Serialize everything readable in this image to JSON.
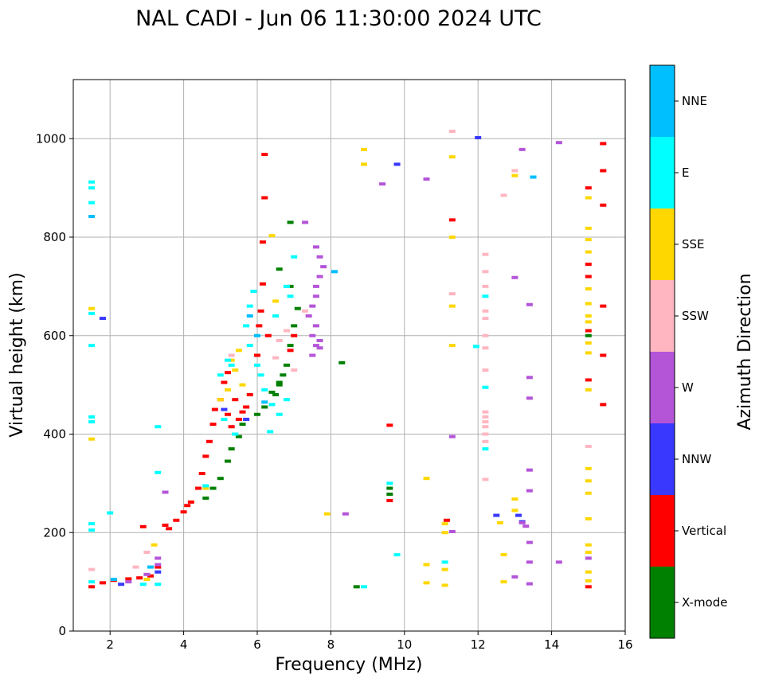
{
  "chart_data": {
    "type": "scatter",
    "title": "NAL CADI - Jun 06 11:30:00 2024 UTC",
    "xlabel": "Frequency (MHz)",
    "ylabel": "Virtual height (km)",
    "xlim": [
      1,
      16
    ],
    "ylim": [
      0,
      1120
    ],
    "xticks": [
      2,
      4,
      6,
      8,
      10,
      12,
      14,
      16
    ],
    "yticks": [
      0,
      200,
      400,
      600,
      800,
      1000
    ],
    "grid": true,
    "colorbar": {
      "label": "Azimuth Direction",
      "categories": [
        {
          "name": "X-mode",
          "color": "#008000"
        },
        {
          "name": "Vertical",
          "color": "#ff0000"
        },
        {
          "name": "NNW",
          "color": "#3838ff"
        },
        {
          "name": "W",
          "color": "#b455d8"
        },
        {
          "name": "SSW",
          "color": "#ffb6c1"
        },
        {
          "name": "SSE",
          "color": "#ffd700"
        },
        {
          "name": "E",
          "color": "#00ffff"
        },
        {
          "name": "NNE",
          "color": "#00bfff"
        }
      ]
    },
    "series": [
      {
        "name": "Vertical",
        "points": [
          [
            1.5,
            90
          ],
          [
            1.8,
            98
          ],
          [
            2.1,
            103
          ],
          [
            2.5,
            106
          ],
          [
            2.8,
            108
          ],
          [
            3.1,
            112
          ],
          [
            3.5,
            215
          ],
          [
            3.6,
            208
          ],
          [
            3.8,
            225
          ],
          [
            4.0,
            242
          ],
          [
            4.2,
            262
          ],
          [
            4.4,
            290
          ],
          [
            4.5,
            320
          ],
          [
            4.6,
            355
          ],
          [
            4.7,
            385
          ],
          [
            4.8,
            420
          ],
          [
            4.85,
            450
          ],
          [
            5.0,
            470
          ],
          [
            5.1,
            505
          ],
          [
            5.2,
            440
          ],
          [
            5.3,
            415
          ],
          [
            5.4,
            470
          ],
          [
            5.5,
            430
          ],
          [
            5.6,
            445
          ],
          [
            5.7,
            455
          ],
          [
            5.8,
            480
          ],
          [
            6.0,
            560
          ],
          [
            6.05,
            620
          ],
          [
            6.1,
            650
          ],
          [
            6.15,
            705
          ],
          [
            6.15,
            790
          ],
          [
            6.2,
            880
          ],
          [
            6.2,
            968
          ],
          [
            6.3,
            600
          ],
          [
            6.9,
            570
          ],
          [
            7.0,
            600
          ],
          [
            9.6,
            418
          ],
          [
            9.6,
            265
          ],
          [
            11.3,
            835
          ],
          [
            11.15,
            225
          ],
          [
            15.0,
            90
          ],
          [
            15.0,
            510
          ],
          [
            15.0,
            610
          ],
          [
            15.0,
            720
          ],
          [
            15.0,
            745
          ],
          [
            15.0,
            900
          ],
          [
            15.4,
            460
          ],
          [
            15.4,
            560
          ],
          [
            15.4,
            660
          ],
          [
            15.4,
            865
          ],
          [
            15.4,
            935
          ],
          [
            15.4,
            990
          ],
          [
            3.3,
            130
          ],
          [
            4.1,
            255
          ],
          [
            5.2,
            525
          ],
          [
            2.9,
            212
          ]
        ]
      },
      {
        "name": "X-mode",
        "points": [
          [
            4.6,
            270
          ],
          [
            4.8,
            290
          ],
          [
            5.0,
            310
          ],
          [
            5.2,
            345
          ],
          [
            5.3,
            370
          ],
          [
            5.5,
            395
          ],
          [
            5.6,
            420
          ],
          [
            6.0,
            440
          ],
          [
            6.2,
            455
          ],
          [
            6.5,
            480
          ],
          [
            6.6,
            505
          ],
          [
            6.7,
            520
          ],
          [
            6.8,
            540
          ],
          [
            6.9,
            580
          ],
          [
            7.0,
            620
          ],
          [
            7.1,
            655
          ],
          [
            6.9,
            700
          ],
          [
            6.6,
            735
          ],
          [
            6.6,
            500
          ],
          [
            6.4,
            485
          ],
          [
            8.3,
            545
          ],
          [
            6.9,
            830
          ],
          [
            8.7,
            90
          ],
          [
            9.6,
            290
          ],
          [
            9.6,
            278
          ],
          [
            15.0,
            600
          ]
        ]
      },
      {
        "name": "NNW",
        "points": [
          [
            1.8,
            635
          ],
          [
            2.3,
            95
          ],
          [
            12.0,
            1002
          ],
          [
            9.8,
            948
          ],
          [
            13.1,
            235
          ],
          [
            13.2,
            222
          ],
          [
            12.5,
            235
          ],
          [
            5.7,
            430
          ],
          [
            5.1,
            450
          ],
          [
            3.3,
            120
          ]
        ]
      },
      {
        "name": "W",
        "points": [
          [
            7.6,
            780
          ],
          [
            7.7,
            760
          ],
          [
            7.8,
            740
          ],
          [
            7.7,
            720
          ],
          [
            7.6,
            700
          ],
          [
            7.6,
            680
          ],
          [
            7.5,
            660
          ],
          [
            7.4,
            640
          ],
          [
            7.6,
            620
          ],
          [
            7.5,
            600
          ],
          [
            7.6,
            580
          ],
          [
            7.7,
            590
          ],
          [
            7.5,
            560
          ],
          [
            7.3,
            830
          ],
          [
            9.4,
            908
          ],
          [
            10.6,
            918
          ],
          [
            13.2,
            978
          ],
          [
            13.0,
            718
          ],
          [
            13.4,
            663
          ],
          [
            13.4,
            515
          ],
          [
            13.4,
            473
          ],
          [
            13.4,
            327
          ],
          [
            13.4,
            285
          ],
          [
            13.3,
            213
          ],
          [
            13.2,
            220
          ],
          [
            13.4,
            180
          ],
          [
            13.4,
            140
          ],
          [
            13.4,
            96
          ],
          [
            13.0,
            110
          ],
          [
            14.2,
            140
          ],
          [
            14.2,
            992
          ],
          [
            15.0,
            148
          ],
          [
            3.3,
            135
          ],
          [
            3.0,
            115
          ],
          [
            2.5,
            100
          ],
          [
            3.5,
            282
          ],
          [
            3.3,
            148
          ],
          [
            11.3,
            395
          ],
          [
            11.3,
            202
          ],
          [
            8.4,
            238
          ],
          [
            7.7,
            575
          ]
        ]
      },
      {
        "name": "SSW",
        "points": [
          [
            12.2,
            765
          ],
          [
            12.2,
            730
          ],
          [
            12.2,
            700
          ],
          [
            12.2,
            650
          ],
          [
            12.2,
            635
          ],
          [
            12.2,
            600
          ],
          [
            12.2,
            575
          ],
          [
            12.2,
            530
          ],
          [
            12.2,
            445
          ],
          [
            12.2,
            435
          ],
          [
            12.2,
            425
          ],
          [
            12.2,
            415
          ],
          [
            12.2,
            400
          ],
          [
            12.2,
            385
          ],
          [
            12.2,
            308
          ],
          [
            12.7,
            885
          ],
          [
            13.0,
            935
          ],
          [
            15.0,
            375
          ],
          [
            7.0,
            530
          ],
          [
            6.5,
            555
          ],
          [
            6.6,
            590
          ],
          [
            6.8,
            610
          ],
          [
            7.3,
            650
          ],
          [
            3.0,
            160
          ],
          [
            2.7,
            130
          ],
          [
            5.3,
            560
          ],
          [
            11.3,
            1015
          ],
          [
            11.3,
            685
          ],
          [
            1.5,
            125
          ]
        ]
      },
      {
        "name": "SSE",
        "points": [
          [
            15.0,
            818
          ],
          [
            15.0,
            795
          ],
          [
            15.0,
            770
          ],
          [
            15.0,
            695
          ],
          [
            15.0,
            665
          ],
          [
            15.0,
            640
          ],
          [
            15.0,
            628
          ],
          [
            15.0,
            585
          ],
          [
            15.0,
            565
          ],
          [
            15.0,
            490
          ],
          [
            15.0,
            330
          ],
          [
            15.0,
            305
          ],
          [
            15.0,
            280
          ],
          [
            15.0,
            228
          ],
          [
            15.0,
            175
          ],
          [
            15.0,
            160
          ],
          [
            15.0,
            120
          ],
          [
            15.0,
            102
          ],
          [
            15.0,
            880
          ],
          [
            8.9,
            978
          ],
          [
            8.9,
            948
          ],
          [
            11.3,
            963
          ],
          [
            11.3,
            800
          ],
          [
            11.3,
            660
          ],
          [
            11.3,
            580
          ],
          [
            11.1,
            218
          ],
          [
            11.1,
            200
          ],
          [
            11.1,
            125
          ],
          [
            11.1,
            93
          ],
          [
            10.6,
            310
          ],
          [
            10.6,
            135
          ],
          [
            10.6,
            98
          ],
          [
            12.6,
            220
          ],
          [
            12.7,
            155
          ],
          [
            12.7,
            100
          ],
          [
            13.0,
            268
          ],
          [
            13.0,
            245
          ],
          [
            6.4,
            803
          ],
          [
            6.5,
            670
          ],
          [
            5.3,
            550
          ],
          [
            5.5,
            570
          ],
          [
            5.4,
            530
          ],
          [
            5.2,
            490
          ],
          [
            5.0,
            470
          ],
          [
            5.6,
            500
          ],
          [
            4.6,
            290
          ],
          [
            1.5,
            655
          ],
          [
            1.5,
            390
          ],
          [
            7.9,
            238
          ],
          [
            3.2,
            175
          ],
          [
            3.0,
            105
          ],
          [
            13.0,
            925
          ]
        ]
      },
      {
        "name": "E",
        "points": [
          [
            5.9,
            690
          ],
          [
            5.8,
            660
          ],
          [
            5.7,
            620
          ],
          [
            5.8,
            580
          ],
          [
            6.0,
            540
          ],
          [
            6.1,
            520
          ],
          [
            6.2,
            490
          ],
          [
            6.4,
            460
          ],
          [
            6.6,
            440
          ],
          [
            6.8,
            470
          ],
          [
            6.9,
            680
          ],
          [
            7.0,
            760
          ],
          [
            6.8,
            700
          ],
          [
            6.5,
            640
          ],
          [
            5.3,
            540
          ],
          [
            5.0,
            520
          ],
          [
            5.1,
            430
          ],
          [
            5.4,
            400
          ],
          [
            5.2,
            550
          ],
          [
            1.5,
            912
          ],
          [
            1.5,
            900
          ],
          [
            1.5,
            870
          ],
          [
            1.5,
            645
          ],
          [
            1.5,
            580
          ],
          [
            1.5,
            435
          ],
          [
            1.5,
            425
          ],
          [
            1.5,
            218
          ],
          [
            1.5,
            205
          ],
          [
            1.5,
            100
          ],
          [
            2.0,
            240
          ],
          [
            3.3,
            415
          ],
          [
            3.3,
            322
          ],
          [
            8.9,
            90
          ],
          [
            9.8,
            155
          ],
          [
            9.6,
            300
          ],
          [
            12.2,
            680
          ],
          [
            12.2,
            495
          ],
          [
            12.2,
            370
          ],
          [
            11.95,
            578
          ],
          [
            11.1,
            140
          ],
          [
            4.6,
            295
          ],
          [
            6.35,
            405
          ],
          [
            2.9,
            95
          ],
          [
            3.3,
            95
          ]
        ]
      },
      {
        "name": "NNE",
        "points": [
          [
            1.5,
            842
          ],
          [
            13.5,
            922
          ],
          [
            2.1,
            105
          ],
          [
            3.1,
            130
          ],
          [
            6.2,
            465
          ],
          [
            6.0,
            600
          ],
          [
            5.8,
            640
          ],
          [
            8.1,
            730
          ]
        ]
      }
    ]
  }
}
